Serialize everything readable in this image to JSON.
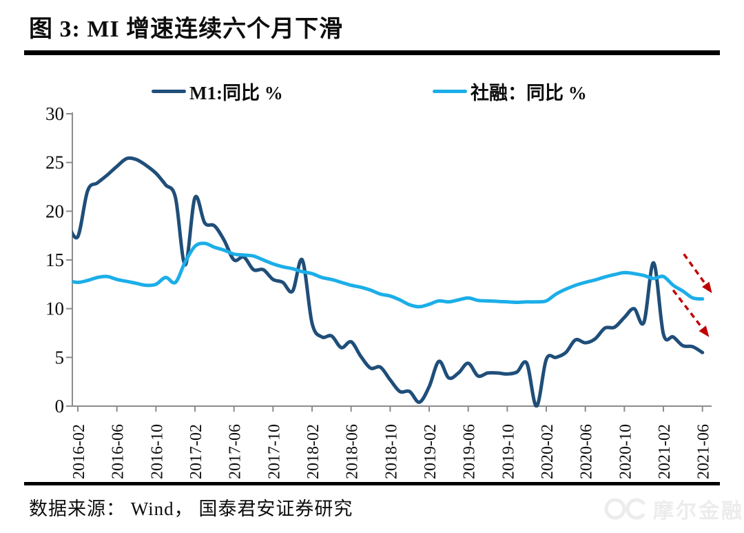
{
  "title": "图 3: MI 增速连续六个月下滑",
  "source_note": "数据来源： Wind， 国泰君安证券研究",
  "watermark": {
    "text": "摩尔金融"
  },
  "colors": {
    "m1_line": "#1f4e79",
    "shehui_line": "#1caee8",
    "arrow_red": "#c00000",
    "axis_gray": "#8c8c8c",
    "text_black": "#0d0d0d",
    "watermark_gray": "#ececec"
  },
  "chart_data": {
    "type": "line",
    "grid": false,
    "legend_position": "top",
    "ylim": [
      0,
      30
    ],
    "y_ticks": [
      0,
      5,
      10,
      15,
      20,
      25,
      30
    ],
    "x": [
      "2016-01",
      "2016-02",
      "2016-03",
      "2016-04",
      "2016-05",
      "2016-06",
      "2016-07",
      "2016-08",
      "2016-09",
      "2016-10",
      "2016-11",
      "2016-12",
      "2017-01",
      "2017-02",
      "2017-03",
      "2017-04",
      "2017-05",
      "2017-06",
      "2017-07",
      "2017-08",
      "2017-09",
      "2017-10",
      "2017-11",
      "2017-12",
      "2018-01",
      "2018-02",
      "2018-03",
      "2018-04",
      "2018-05",
      "2018-06",
      "2018-07",
      "2018-08",
      "2018-09",
      "2018-10",
      "2018-11",
      "2018-12",
      "2019-01",
      "2019-02",
      "2019-03",
      "2019-04",
      "2019-05",
      "2019-06",
      "2019-07",
      "2019-08",
      "2019-09",
      "2019-10",
      "2019-11",
      "2019-12",
      "2020-01",
      "2020-02",
      "2020-03",
      "2020-04",
      "2020-05",
      "2020-06",
      "2020-07",
      "2020-08",
      "2020-09",
      "2020-10",
      "2020-11",
      "2020-12",
      "2021-01",
      "2021-02",
      "2021-03",
      "2021-04",
      "2021-05",
      "2021-06"
    ],
    "x_tick_labels": [
      "2016-02",
      "2016-06",
      "2016-10",
      "2017-02",
      "2017-06",
      "2017-10",
      "2018-02",
      "2018-06",
      "2018-10",
      "2019-02",
      "2019-06",
      "2019-10",
      "2020-02",
      "2020-06",
      "2020-10",
      "2021-02",
      "2021-06"
    ],
    "series": [
      {
        "name": "M1:同比 %",
        "color": "#1f4e79",
        "values": [
          18.6,
          17.4,
          22.1,
          22.9,
          23.7,
          24.6,
          25.4,
          25.3,
          24.7,
          23.9,
          22.7,
          21.4,
          14.5,
          21.4,
          18.8,
          18.5,
          17.0,
          15.0,
          15.3,
          14.0,
          14.0,
          13.0,
          12.7,
          11.8,
          15.0,
          8.5,
          7.1,
          7.2,
          6.0,
          6.6,
          5.1,
          3.9,
          4.0,
          2.7,
          1.5,
          1.5,
          0.4,
          2.0,
          4.6,
          2.9,
          3.4,
          4.4,
          3.1,
          3.4,
          3.4,
          3.3,
          3.5,
          4.4,
          0.0,
          4.8,
          5.0,
          5.5,
          6.8,
          6.5,
          6.9,
          8.0,
          8.1,
          9.1,
          10.0,
          8.6,
          14.7,
          7.4,
          7.1,
          6.2,
          6.1,
          5.5
        ]
      },
      {
        "name": "社融：同比 %",
        "color": "#1caee8",
        "values": [
          12.9,
          12.7,
          12.9,
          13.2,
          13.3,
          13.0,
          12.8,
          12.6,
          12.4,
          12.5,
          13.2,
          12.7,
          14.8,
          16.4,
          16.7,
          16.3,
          16.0,
          15.6,
          15.5,
          15.4,
          15.0,
          14.6,
          14.3,
          14.1,
          13.8,
          13.6,
          13.2,
          13.0,
          12.7,
          12.4,
          12.2,
          11.9,
          11.5,
          11.3,
          10.9,
          10.4,
          10.2,
          10.45,
          10.8,
          10.7,
          10.9,
          11.1,
          10.85,
          10.8,
          10.75,
          10.7,
          10.65,
          10.7,
          10.7,
          10.8,
          11.5,
          12.0,
          12.4,
          12.7,
          12.95,
          13.25,
          13.5,
          13.7,
          13.6,
          13.4,
          13.1,
          13.3,
          12.4,
          11.8,
          11.1,
          11.0
        ]
      }
    ],
    "annotations": [
      {
        "type": "arrow",
        "from": {
          "month_index": 63.1,
          "value": 15.6
        },
        "to": {
          "month_index": 65.9,
          "value": 11.7
        }
      },
      {
        "type": "arrow",
        "from": {
          "month_index": 62.0,
          "value": 11.9
        },
        "to": {
          "month_index": 65.6,
          "value": 7.2
        }
      }
    ]
  }
}
